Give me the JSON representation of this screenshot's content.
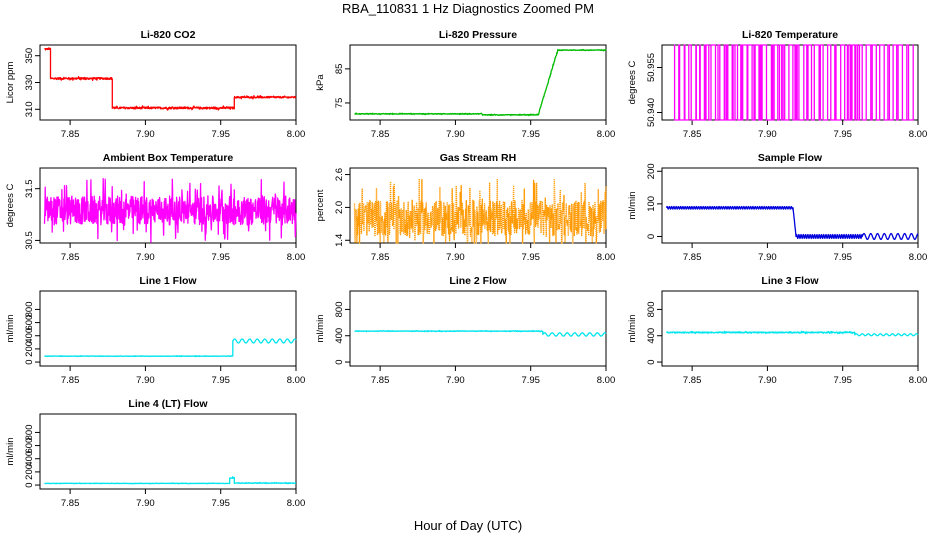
{
  "figure": {
    "title": "RBA_110831  1 Hz Diagnostics Zoomed PM",
    "xlabel": "Hour of Day (UTC)"
  },
  "chart_data": [
    {
      "type": "line",
      "title": "Li-820 CO2",
      "ylabel": "Licor ppm",
      "color": "#ff0000",
      "xlim": [
        7.83,
        8.0
      ],
      "ylim": [
        302,
        358
      ],
      "x_ticks": [
        "7.85",
        "7.90",
        "7.95",
        "8.00"
      ],
      "y_ticks": [
        "310",
        "330",
        "350"
      ],
      "segments": [
        {
          "x0": 7.833,
          "x1": 7.837,
          "y": 355,
          "noise": 0.5,
          "osc": 0
        },
        {
          "x0": 7.837,
          "x1": 7.878,
          "y": 333,
          "noise": 0.7,
          "osc": 0
        },
        {
          "x0": 7.878,
          "x1": 7.959,
          "y": 311,
          "noise": 0.7,
          "osc": 0
        },
        {
          "x0": 7.959,
          "x1": 8.0,
          "y": 319,
          "noise": 0.6,
          "osc": 0
        }
      ]
    },
    {
      "type": "line",
      "title": "Li-820 Pressure",
      "ylabel": "kPa",
      "color": "#00bb00",
      "xlim": [
        7.83,
        8.0
      ],
      "ylim": [
        70,
        92
      ],
      "x_ticks": [
        "7.85",
        "7.90",
        "7.95",
        "8.00"
      ],
      "y_ticks": [
        "75",
        "85"
      ],
      "segments": [
        {
          "x0": 7.833,
          "x1": 7.918,
          "y": 71.8,
          "noise": 0.1,
          "osc": 0
        },
        {
          "x0": 7.918,
          "x1": 7.955,
          "y": 71.5,
          "noise": 0.1,
          "osc": 0
        },
        {
          "x0": 7.955,
          "x1": 7.968,
          "y0": 71.5,
          "y1": 90.5,
          "noise": 0.2,
          "osc": 0
        },
        {
          "x0": 7.968,
          "x1": 8.0,
          "y": 90.5,
          "noise": 0.1,
          "osc": 0
        }
      ]
    },
    {
      "type": "binary",
      "title": "Li-820 Temperature",
      "ylabel": "degrees C",
      "color": "#ff00ff",
      "xlim": [
        7.83,
        8.0
      ],
      "ylim": [
        50.9375,
        50.9625
      ],
      "x_ticks": [
        "7.85",
        "7.90",
        "7.95",
        "8.00"
      ],
      "y_ticks": [
        "50.940",
        "50.955"
      ],
      "low": 50.9375,
      "high": 50.9625,
      "transitions": 90,
      "segments": []
    },
    {
      "type": "line",
      "title": "Ambient Box Temperature",
      "ylabel": "degrees C",
      "color": "#ff00ff",
      "xlim": [
        7.83,
        8.0
      ],
      "ylim": [
        30.45,
        31.9
      ],
      "x_ticks": [
        "7.85",
        "7.90",
        "7.95",
        "8.00"
      ],
      "y_ticks": [
        "30.5",
        "31.5"
      ],
      "segments": [
        {
          "x0": 7.833,
          "x1": 8.0,
          "y": 31.08,
          "noise": 0.28,
          "osc": 0
        }
      ]
    },
    {
      "type": "line",
      "title": "Gas Stream RH",
      "ylabel": "percent",
      "color": "#ff9900",
      "dotted": true,
      "xlim": [
        7.83,
        8.0
      ],
      "ylim": [
        1.35,
        2.72
      ],
      "x_ticks": [
        "7.85",
        "7.90",
        "7.95",
        "8.00"
      ],
      "y_ticks": [
        "1.4",
        "2.0",
        "2.6"
      ],
      "segments": [
        {
          "x0": 7.833,
          "x1": 8.0,
          "y": 1.8,
          "noise": 0.33,
          "osc": 0
        }
      ]
    },
    {
      "type": "line",
      "title": "Sample Flow",
      "ylabel": "ml/min",
      "color": "#0000dd",
      "xlim": [
        7.83,
        8.0
      ],
      "ylim": [
        -20,
        210
      ],
      "x_ticks": [
        "7.85",
        "7.90",
        "7.95",
        "8.00"
      ],
      "y_ticks": [
        "0",
        "100",
        "200"
      ],
      "segments": [
        {
          "x0": 7.833,
          "x1": 7.917,
          "y": 88,
          "noise": 0,
          "osc": 4,
          "period": 0.0015
        },
        {
          "x0": 7.917,
          "x1": 7.919,
          "y0": 88,
          "y1": 0,
          "noise": 0,
          "osc": 0
        },
        {
          "x0": 7.919,
          "x1": 7.963,
          "y": 0,
          "noise": 0,
          "osc": 6,
          "period": 0.0015
        },
        {
          "x0": 7.963,
          "x1": 8.0,
          "y": 0,
          "noise": 0,
          "osc": 9,
          "period": 0.0045
        }
      ]
    },
    {
      "type": "line",
      "title": "Line 1 Flow",
      "ylabel": "ml/min",
      "color": "#00e5ee",
      "xlim": [
        7.83,
        8.0
      ],
      "ylim": [
        -60,
        1080
      ],
      "x_ticks": [
        "7.85",
        "7.90",
        "7.95",
        "8.00"
      ],
      "y_ticks": [
        "0",
        "200",
        "400",
        "600",
        "800"
      ],
      "segments": [
        {
          "x0": 7.833,
          "x1": 7.958,
          "y": 90,
          "noise": 3,
          "osc": 0
        },
        {
          "x0": 7.958,
          "x1": 8.0,
          "y": 320,
          "noise": 0,
          "osc": 30,
          "period": 0.005
        }
      ]
    },
    {
      "type": "line",
      "title": "Line 2 Flow",
      "ylabel": "ml/min",
      "color": "#00e5ee",
      "xlim": [
        7.83,
        8.0
      ],
      "ylim": [
        -60,
        1080
      ],
      "x_ticks": [
        "7.85",
        "7.90",
        "7.95",
        "8.00"
      ],
      "y_ticks": [
        "0",
        "400",
        "800"
      ],
      "segments": [
        {
          "x0": 7.833,
          "x1": 7.958,
          "y": 470,
          "noise": 4,
          "osc": 0
        },
        {
          "x0": 7.958,
          "x1": 8.0,
          "y": 420,
          "noise": 0,
          "osc": 25,
          "period": 0.005
        }
      ]
    },
    {
      "type": "line",
      "title": "Line 3 Flow",
      "ylabel": "ml/min",
      "color": "#00e5ee",
      "xlim": [
        7.83,
        8.0
      ],
      "ylim": [
        -60,
        1080
      ],
      "x_ticks": [
        "7.85",
        "7.90",
        "7.95",
        "8.00"
      ],
      "y_ticks": [
        "0",
        "400",
        "800"
      ],
      "segments": [
        {
          "x0": 7.833,
          "x1": 7.958,
          "y": 450,
          "noise": 8,
          "osc": 0
        },
        {
          "x0": 7.958,
          "x1": 8.0,
          "y": 415,
          "noise": 0,
          "osc": 15,
          "period": 0.004
        }
      ]
    },
    {
      "type": "line",
      "title": "Line 4 (LT) Flow",
      "ylabel": "ml/min",
      "color": "#00e5ee",
      "xlim": [
        7.83,
        8.0
      ],
      "ylim": [
        -60,
        1080
      ],
      "x_ticks": [
        "7.85",
        "7.90",
        "7.95",
        "8.00"
      ],
      "y_ticks": [
        "0",
        "200",
        "400",
        "600",
        "800"
      ],
      "segments": [
        {
          "x0": 7.833,
          "x1": 7.956,
          "y": 25,
          "noise": 3,
          "osc": 0
        },
        {
          "x0": 7.956,
          "x1": 7.959,
          "y": 110,
          "noise": 8,
          "osc": 0
        },
        {
          "x0": 7.959,
          "x1": 8.0,
          "y": 30,
          "noise": 4,
          "osc": 0
        }
      ]
    }
  ]
}
